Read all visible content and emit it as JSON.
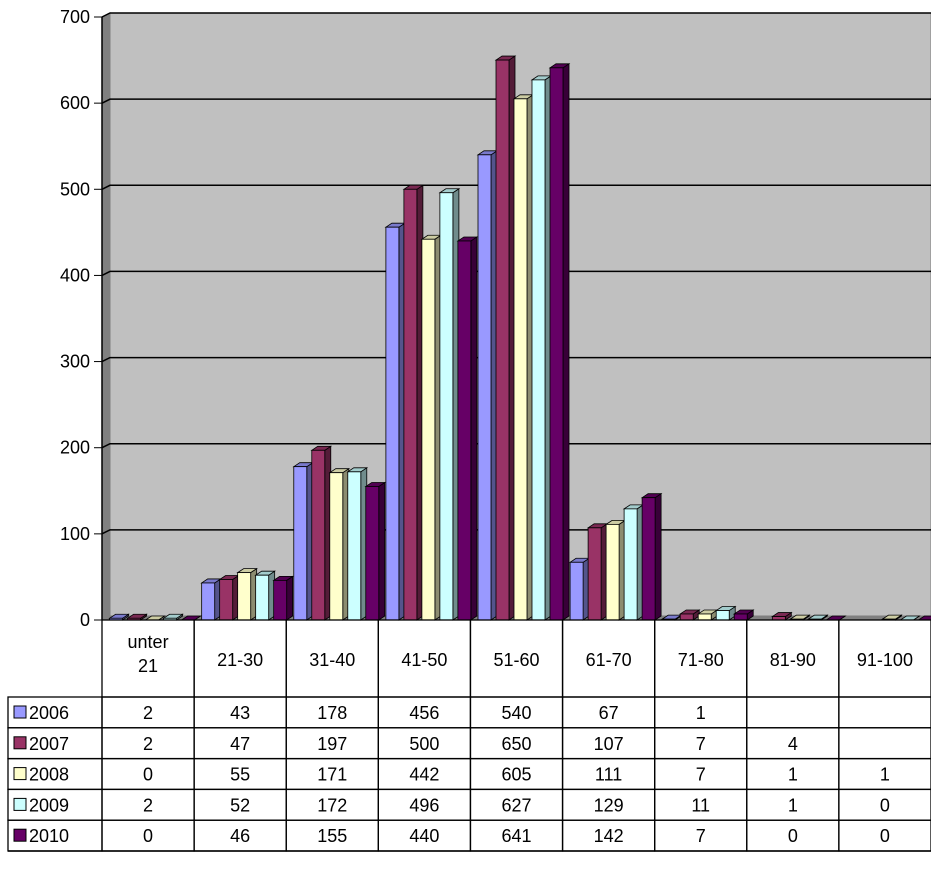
{
  "chart_data": {
    "type": "bar",
    "title": "",
    "xlabel": "",
    "ylabel": "",
    "ylim": [
      0,
      700
    ],
    "yticks": [
      0,
      100,
      200,
      300,
      400,
      500,
      600,
      700
    ],
    "grid": true,
    "legend_placement": "data-table-left",
    "categories": [
      "unter 21",
      "21-30",
      "31-40",
      "41-50",
      "51-60",
      "61-70",
      "71-80",
      "81-90",
      "91-100"
    ],
    "series": [
      {
        "name": "2006",
        "color": "#9999ff",
        "values": [
          2,
          43,
          178,
          456,
          540,
          67,
          1,
          null,
          null
        ]
      },
      {
        "name": "2007",
        "color": "#993366",
        "values": [
          2,
          47,
          197,
          500,
          650,
          107,
          7,
          4,
          null
        ]
      },
      {
        "name": "2008",
        "color": "#ffffcc",
        "values": [
          0,
          55,
          171,
          442,
          605,
          111,
          7,
          1,
          1
        ]
      },
      {
        "name": "2009",
        "color": "#ccffff",
        "values": [
          2,
          52,
          172,
          496,
          627,
          129,
          11,
          1,
          0
        ]
      },
      {
        "name": "2010",
        "color": "#660066",
        "values": [
          0,
          46,
          155,
          440,
          641,
          142,
          7,
          0,
          0
        ]
      }
    ]
  },
  "colors": {
    "plot_background": "#c0c0c0",
    "gridline": "#000000"
  }
}
